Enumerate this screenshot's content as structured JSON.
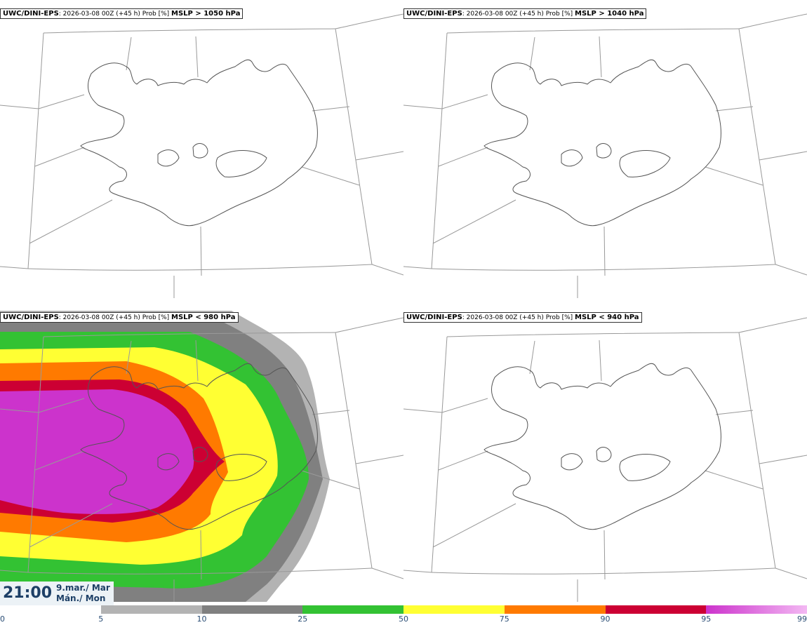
{
  "panels": [
    {
      "source": "UWC/DINI-EPS",
      "meta": ": 2026-03-08 00Z (+45 h) Prob [%] ",
      "threshold": "MSLP > 1050 hPa"
    },
    {
      "source": "UWC/DINI-EPS",
      "meta": ": 2026-03-08 00Z (+45 h) Prob [%] ",
      "threshold": "MSLP > 1040 hPa"
    },
    {
      "source": "UWC/DINI-EPS",
      "meta": ": 2026-03-08 00Z (+45 h) Prob [%] ",
      "threshold": "MSLP < 980 hPa"
    },
    {
      "source": "UWC/DINI-EPS",
      "meta": ": 2026-03-08 00Z (+45 h) Prob [%] ",
      "threshold": "MSLP < 940 hPa"
    }
  ],
  "time": {
    "clock": "21:00",
    "date_line1": "9.mar./ Mar",
    "date_line2": "Mán./ Mon"
  },
  "colorbar": {
    "ticks": [
      "0",
      "5",
      "10",
      "25",
      "50",
      "75",
      "90",
      "95",
      "99"
    ],
    "colors": [
      "#ffffff",
      "#b3b3b3",
      "#808080",
      "#33c233",
      "#ffff33",
      "#ff7a00",
      "#cc0033",
      "#cc33cc"
    ]
  },
  "map_colors": {
    "coast": "#555555",
    "grid": "#999999"
  }
}
